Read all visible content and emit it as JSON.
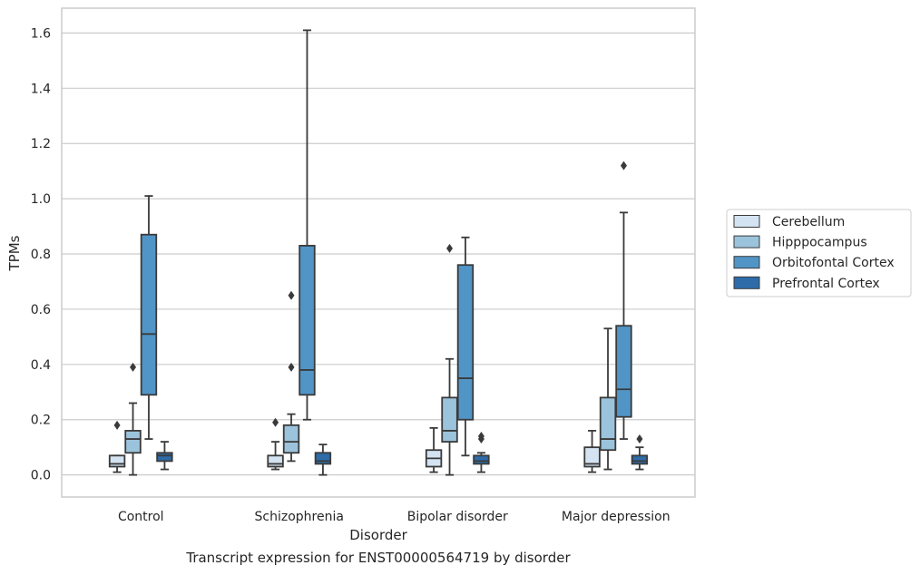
{
  "caption": "Transcript expression for ENST00000564719 by disorder",
  "chart_data": {
    "type": "box",
    "xlabel": "Disorder",
    "ylabel": "TPMs",
    "categories": [
      "Control",
      "Schizophrenia",
      "Bipolar disorder",
      "Major depression"
    ],
    "ylim": [
      -0.08,
      1.69
    ],
    "yticks": [
      0.0,
      0.2,
      0.4,
      0.6,
      0.8,
      1.0,
      1.2,
      1.4,
      1.6
    ],
    "ytick_labels": [
      "0.0",
      "0.2",
      "0.4",
      "0.6",
      "0.8",
      "1.0",
      "1.2",
      "1.4",
      "1.6"
    ],
    "grid": "horizontal",
    "legend_placement": "right, outside plot",
    "series": [
      {
        "name": "Cerebellum",
        "color": "#d3e3f1",
        "boxes": [
          {
            "whislo": 0.01,
            "q1": 0.03,
            "med": 0.04,
            "q3": 0.07,
            "whishi": 0.07,
            "fliers": [
              0.18
            ]
          },
          {
            "whislo": 0.02,
            "q1": 0.03,
            "med": 0.04,
            "q3": 0.07,
            "whishi": 0.12,
            "fliers": [
              0.19
            ]
          },
          {
            "whislo": 0.01,
            "q1": 0.03,
            "med": 0.06,
            "q3": 0.09,
            "whishi": 0.17,
            "fliers": []
          },
          {
            "whislo": 0.01,
            "q1": 0.03,
            "med": 0.04,
            "q3": 0.1,
            "whishi": 0.16,
            "fliers": []
          }
        ]
      },
      {
        "name": "Hipppocampus",
        "color": "#9cc3dc",
        "boxes": [
          {
            "whislo": 0.0,
            "q1": 0.08,
            "med": 0.13,
            "q3": 0.16,
            "whishi": 0.26,
            "fliers": [
              0.39
            ]
          },
          {
            "whislo": 0.05,
            "q1": 0.08,
            "med": 0.12,
            "q3": 0.18,
            "whishi": 0.22,
            "fliers": [
              0.39,
              0.65
            ]
          },
          {
            "whislo": 0.0,
            "q1": 0.12,
            "med": 0.16,
            "q3": 0.28,
            "whishi": 0.42,
            "fliers": [
              0.82
            ]
          },
          {
            "whislo": 0.02,
            "q1": 0.09,
            "med": 0.13,
            "q3": 0.28,
            "whishi": 0.53,
            "fliers": []
          }
        ]
      },
      {
        "name": "Orbitofontal Cortex",
        "color": "#5195c7",
        "boxes": [
          {
            "whislo": 0.13,
            "q1": 0.29,
            "med": 0.51,
            "q3": 0.87,
            "whishi": 1.01,
            "fliers": []
          },
          {
            "whislo": 0.2,
            "q1": 0.29,
            "med": 0.38,
            "q3": 0.83,
            "whishi": 1.61,
            "fliers": []
          },
          {
            "whislo": 0.07,
            "q1": 0.2,
            "med": 0.35,
            "q3": 0.76,
            "whishi": 0.86,
            "fliers": []
          },
          {
            "whislo": 0.13,
            "q1": 0.21,
            "med": 0.31,
            "q3": 0.54,
            "whishi": 0.95,
            "fliers": [
              1.12
            ]
          }
        ]
      },
      {
        "name": "Prefrontal Cortex",
        "color": "#2d6ca8",
        "boxes": [
          {
            "whislo": 0.02,
            "q1": 0.05,
            "med": 0.07,
            "q3": 0.08,
            "whishi": 0.12,
            "fliers": []
          },
          {
            "whislo": 0.0,
            "q1": 0.04,
            "med": 0.05,
            "q3": 0.08,
            "whishi": 0.11,
            "fliers": []
          },
          {
            "whislo": 0.01,
            "q1": 0.04,
            "med": 0.05,
            "q3": 0.07,
            "whishi": 0.08,
            "fliers": [
              0.13,
              0.14
            ]
          },
          {
            "whislo": 0.02,
            "q1": 0.04,
            "med": 0.05,
            "q3": 0.07,
            "whishi": 0.1,
            "fliers": [
              0.13
            ]
          }
        ]
      }
    ]
  }
}
